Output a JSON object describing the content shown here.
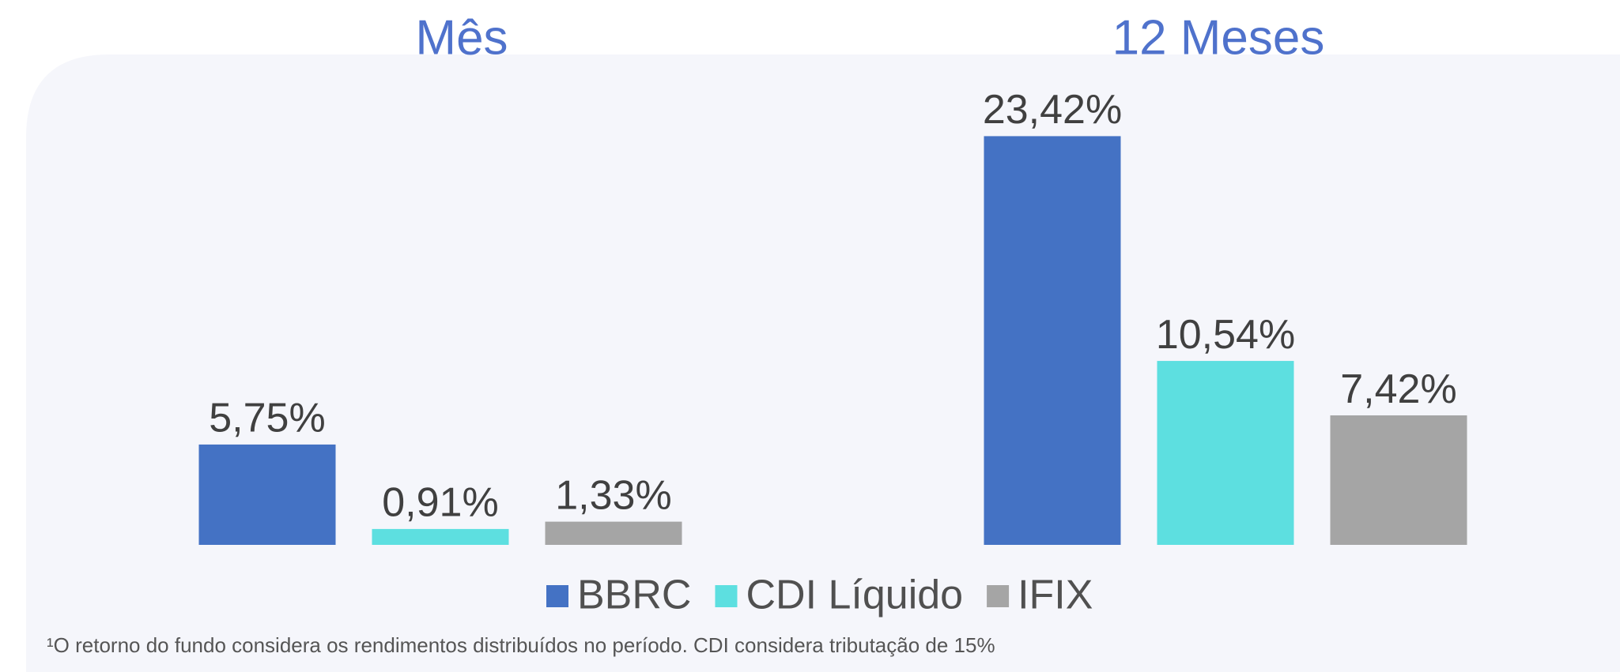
{
  "chart_data": {
    "type": "bar",
    "categories": [
      "Mês",
      "12 Meses"
    ],
    "series": [
      {
        "name": "BBRC",
        "color": "#4472c4",
        "values": [
          5.75,
          23.42
        ],
        "value_labels": [
          "5,75%",
          "23,42%"
        ]
      },
      {
        "name": "CDI Líquido",
        "color": "#5ddfe0",
        "values": [
          0.91,
          10.54
        ],
        "value_labels": [
          "0,91%",
          "10,54%"
        ]
      },
      {
        "name": "IFIX",
        "color": "#a5a5a5",
        "values": [
          1.33,
          7.42
        ],
        "value_labels": [
          "1,33%",
          "7,42%"
        ]
      }
    ],
    "footnote": "¹O retorno do fundo considera os rendimentos distribuídos no período. CDI considera tributação de 15%"
  }
}
